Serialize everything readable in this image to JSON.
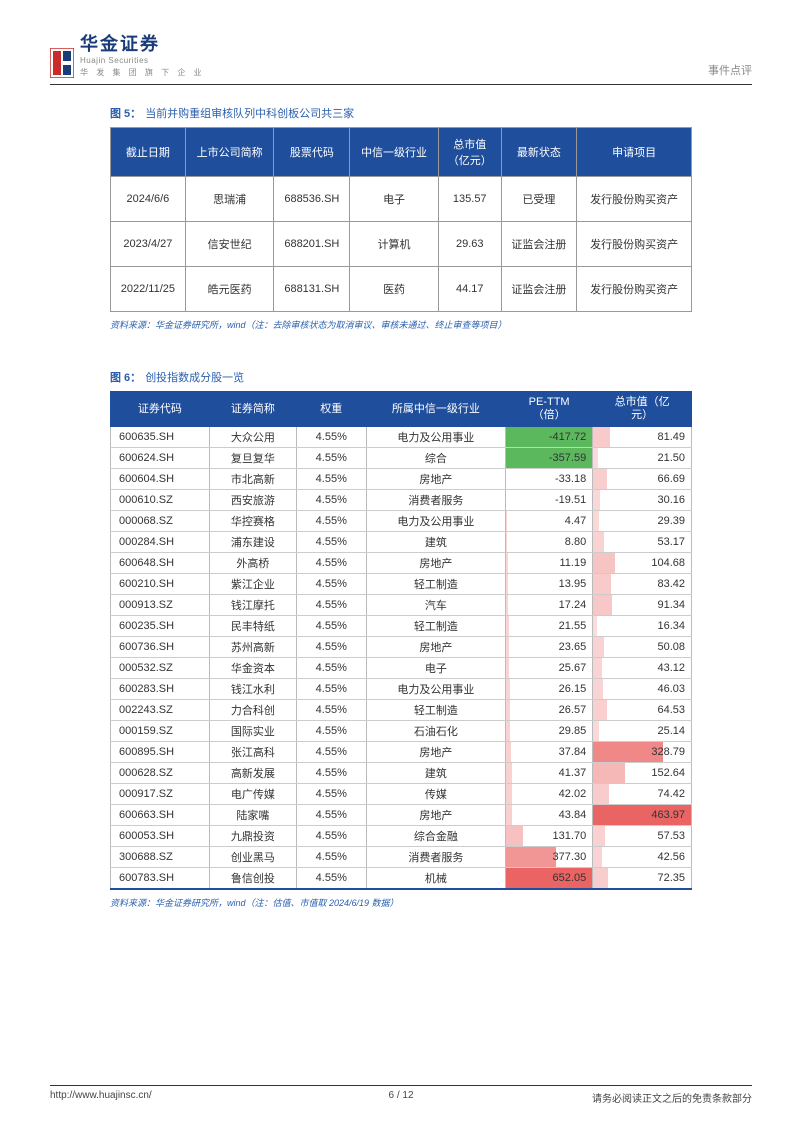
{
  "header": {
    "brand_cn": "华金证券",
    "brand_en": "Huajin Securities",
    "brand_sub": "华 发 集 团 旗 下 企 业",
    "doc_type": "事件点评",
    "logo_colors": {
      "red": "#c92a2a",
      "blue": "#1a3b7a"
    }
  },
  "figure5": {
    "label": "图 5：",
    "title": "当前并购重组审核队列中科创板公司共三家",
    "columns": [
      "截止日期",
      "上市公司简称",
      "股票代码",
      "中信一级行业",
      "总市值\n（亿元）",
      "最新状态",
      "申请项目"
    ],
    "rows": [
      [
        "2024/6/6",
        "思瑞浦",
        "688536.SH",
        "电子",
        "135.57",
        "已受理",
        "发行股份购买资产"
      ],
      [
        "2023/4/27",
        "信安世纪",
        "688201.SH",
        "计算机",
        "29.63",
        "证监会注册",
        "发行股份购买资产"
      ],
      [
        "2022/11/25",
        "皓元医药",
        "688131.SH",
        "医药",
        "44.17",
        "证监会注册",
        "发行股份购买资产"
      ]
    ],
    "source": "资料来源：华金证券研究所，wind（注：去除审核状态为取消审议、审核未通过、终止审查等项目）"
  },
  "figure6": {
    "label": "图 6：",
    "title": "创投指数成分股一览",
    "columns": [
      "证券代码",
      "证券简称",
      "权重",
      "所属中信一级行业",
      "PE-TTM\n（倍）",
      "总市值（亿\n元）"
    ],
    "col_widths": [
      "17%",
      "15%",
      "12%",
      "24%",
      "15%",
      "17%"
    ],
    "pe_green": "#5cb85c",
    "pe_red_base": "#f7b5b5",
    "mv_red_base": "#f7b5b5",
    "rows": [
      {
        "code": "600635.SH",
        "name": "大众公用",
        "w": "4.55%",
        "ind": "电力及公用事业",
        "pe": -417.72,
        "mv": 81.49
      },
      {
        "code": "600624.SH",
        "name": "复旦复华",
        "w": "4.55%",
        "ind": "综合",
        "pe": -357.59,
        "mv": 21.5
      },
      {
        "code": "600604.SH",
        "name": "市北高新",
        "w": "4.55%",
        "ind": "房地产",
        "pe": -33.18,
        "mv": 66.69
      },
      {
        "code": "000610.SZ",
        "name": "西安旅游",
        "w": "4.55%",
        "ind": "消费者服务",
        "pe": -19.51,
        "mv": 30.16
      },
      {
        "code": "000068.SZ",
        "name": "华控赛格",
        "w": "4.55%",
        "ind": "电力及公用事业",
        "pe": 4.47,
        "mv": 29.39
      },
      {
        "code": "000284.SH",
        "name": "浦东建设",
        "w": "4.55%",
        "ind": "建筑",
        "pe": 8.8,
        "mv": 53.17
      },
      {
        "code": "600648.SH",
        "name": "外高桥",
        "w": "4.55%",
        "ind": "房地产",
        "pe": 11.19,
        "mv": 104.68
      },
      {
        "code": "600210.SH",
        "name": "紫江企业",
        "w": "4.55%",
        "ind": "轻工制造",
        "pe": 13.95,
        "mv": 83.42
      },
      {
        "code": "000913.SZ",
        "name": "钱江摩托",
        "w": "4.55%",
        "ind": "汽车",
        "pe": 17.24,
        "mv": 91.34
      },
      {
        "code": "600235.SH",
        "name": "民丰特纸",
        "w": "4.55%",
        "ind": "轻工制造",
        "pe": 21.55,
        "mv": 16.34
      },
      {
        "code": "600736.SH",
        "name": "苏州高新",
        "w": "4.55%",
        "ind": "房地产",
        "pe": 23.65,
        "mv": 50.08
      },
      {
        "code": "000532.SZ",
        "name": "华金资本",
        "w": "4.55%",
        "ind": "电子",
        "pe": 25.67,
        "mv": 43.12
      },
      {
        "code": "600283.SH",
        "name": "钱江水利",
        "w": "4.55%",
        "ind": "电力及公用事业",
        "pe": 26.15,
        "mv": 46.03
      },
      {
        "code": "002243.SZ",
        "name": "力合科创",
        "w": "4.55%",
        "ind": "轻工制造",
        "pe": 26.57,
        "mv": 64.53
      },
      {
        "code": "000159.SZ",
        "name": "国际实业",
        "w": "4.55%",
        "ind": "石油石化",
        "pe": 29.85,
        "mv": 25.14
      },
      {
        "code": "600895.SH",
        "name": "张江高科",
        "w": "4.55%",
        "ind": "房地产",
        "pe": 37.84,
        "mv": 328.79
      },
      {
        "code": "000628.SZ",
        "name": "高新发展",
        "w": "4.55%",
        "ind": "建筑",
        "pe": 41.37,
        "mv": 152.64
      },
      {
        "code": "000917.SZ",
        "name": "电广传媒",
        "w": "4.55%",
        "ind": "传媒",
        "pe": 42.02,
        "mv": 74.42
      },
      {
        "code": "600663.SH",
        "name": "陆家嘴",
        "w": "4.55%",
        "ind": "房地产",
        "pe": 43.84,
        "mv": 463.97
      },
      {
        "code": "600053.SH",
        "name": "九鼎投资",
        "w": "4.55%",
        "ind": "综合金融",
        "pe": 131.7,
        "mv": 57.53
      },
      {
        "code": "300688.SZ",
        "name": "创业黑马",
        "w": "4.55%",
        "ind": "消费者服务",
        "pe": 377.3,
        "mv": 42.56
      },
      {
        "code": "600783.SH",
        "name": "鲁信创投",
        "w": "4.55%",
        "ind": "机械",
        "pe": 652.05,
        "mv": 72.35
      }
    ],
    "pe_max_pos": 652.05,
    "pe_max_neg": 417.72,
    "mv_max": 463.97,
    "source": "资料来源：华金证券研究所，wind（注：估值、市值取 2024/6/19 数据）"
  },
  "footer": {
    "url": "http://www.huajinsc.cn/",
    "page": "6 / 12",
    "disclaimer": "请务必阅读正文之后的免责条款部分"
  }
}
